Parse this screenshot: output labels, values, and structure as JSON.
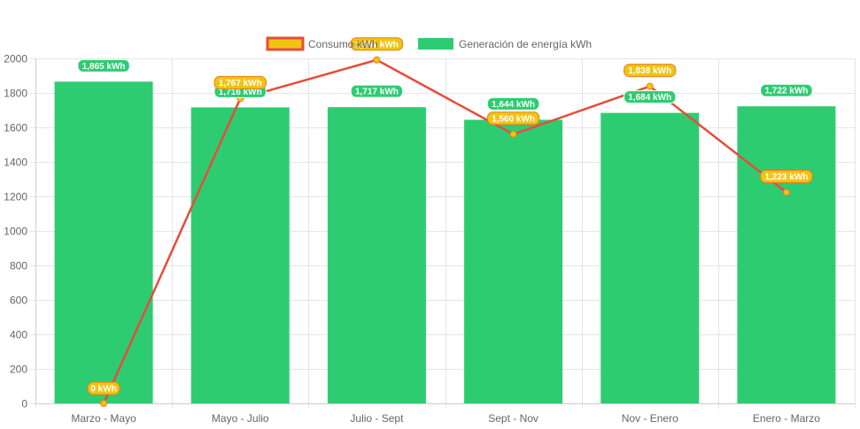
{
  "chart_data": {
    "type": "bar",
    "categories": [
      "Marzo - Mayo",
      "Mayo - Julio",
      "Julio - Sept",
      "Sept - Nov",
      "Nov - Enero",
      "Enero - Marzo"
    ],
    "series": [
      {
        "name": "Generación de energía kWh",
        "type": "bar",
        "values": [
          1865,
          1716,
          1717,
          1644,
          1684,
          1722
        ],
        "labels": [
          "1,865 kWh",
          "1,716 kWh",
          "1,717 kWh",
          "1,644 kWh",
          "1,684 kWh",
          "1,722 kWh"
        ],
        "color": "#2ecc71"
      },
      {
        "name": "Consumo kWh",
        "type": "line",
        "values": [
          0,
          1767,
          1991,
          1560,
          1838,
          1223
        ],
        "labels": [
          "0 kWh",
          "1,767 kWh",
          "1,991 kWh",
          "1,560 kWh",
          "1,838 kWh",
          "1,223 kWh"
        ],
        "color": "#e74c3c",
        "point_color": "#f1c40f"
      }
    ],
    "ylim": [
      0,
      2000
    ],
    "yticks": [
      "0",
      "200",
      "400",
      "600",
      "800",
      "1000",
      "1200",
      "1400",
      "1600",
      "1800",
      "2000"
    ],
    "xlabel": "",
    "ylabel": "",
    "grid": true,
    "legend": "top-center"
  }
}
